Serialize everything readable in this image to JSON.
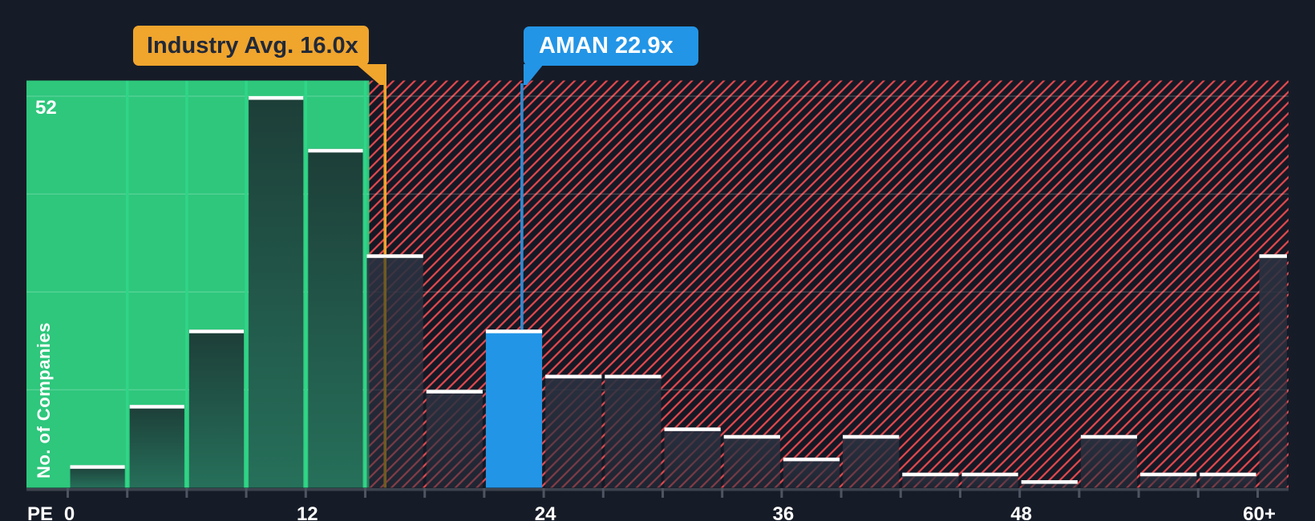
{
  "chart_data": {
    "type": "bar",
    "subtype": "histogram",
    "xlabel": "PE",
    "ylabel": "No. of Companies",
    "y_max": 52,
    "y_max_label": "52",
    "y_gridline_values": [
      13,
      26,
      39,
      52
    ],
    "bin_size_pe": 3,
    "categories": [
      "0-3",
      "3-6",
      "6-9",
      "9-12",
      "12-15",
      "15-18",
      "18-21",
      "21-24",
      "24-27",
      "27-30",
      "30-33",
      "33-36",
      "36-39",
      "39-42",
      "42-45",
      "45-48",
      "48-51",
      "51-54",
      "54-57",
      "57-60",
      "60+"
    ],
    "values": [
      3,
      11,
      21,
      52,
      45,
      31,
      13,
      21,
      15,
      15,
      8,
      7,
      4,
      7,
      2,
      2,
      1,
      7,
      2,
      2,
      31
    ],
    "x_tick_labels": [
      "0",
      "12",
      "24",
      "36",
      "48",
      "60+"
    ],
    "x_tick_values": [
      0,
      12,
      24,
      36,
      48,
      60
    ],
    "green_zone_max_pe": 15,
    "company_bin_index": 7,
    "annotations": [
      {
        "id": "industry_avg",
        "label": "Industry Avg. 16.0x",
        "value_pe": 16.0,
        "color": "#f0a52d"
      },
      {
        "id": "company",
        "label": "AMAN 22.9x",
        "value_pe": 22.9,
        "color": "#2395e6"
      }
    ],
    "legend_position": "none",
    "grid": "subtle-horizontal",
    "colors": {
      "background": "#161c27",
      "green_zone": "#2ec77c",
      "green_gridline": "#30d587",
      "bar_green_top": "#1d3e38",
      "bar_green_bottom": "#26705a",
      "hatch_bg": "#141925",
      "hatch_line": "#e8494e",
      "bar_dark": "#2a3140",
      "company_bar": "#2395e6",
      "company_line": "#2f8bd4",
      "industry_line": "#f0a52d",
      "industry_line_dim": "#6f5a22",
      "bar_cap": "#ffffff",
      "axis_strip": "#3d434e",
      "axis_tick": "#4e5461",
      "gridline": "rgba(255,255,255,0.20)",
      "text": "#ffffff",
      "callout_text_dark": "#212939"
    }
  }
}
